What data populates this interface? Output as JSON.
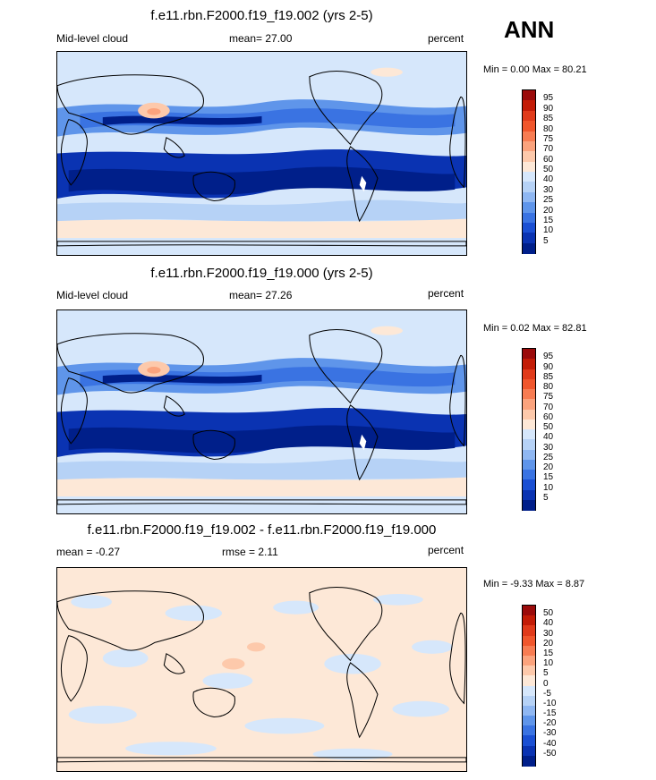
{
  "season": "ANN",
  "panels": [
    {
      "id": "top",
      "title": "f.e11.rbn.F2000.f19_f19.002 (yrs 2-5)",
      "left_label": "Mid-level cloud",
      "center_label": "mean=  27.00",
      "right_label": "percent",
      "minmax": "Min =   0.00 Max =  80.21",
      "ticks": [
        "95",
        "90",
        "85",
        "80",
        "75",
        "70",
        "60",
        "50",
        "40",
        "30",
        "25",
        "20",
        "15",
        "10",
        "5"
      ],
      "colors": [
        "#9b0b0b",
        "#c31c07",
        "#e03a1a",
        "#f0562c",
        "#f77c52",
        "#fba37d",
        "#fdc9ab",
        "#fde8d7",
        "#d6e7fb",
        "#b6d2f6",
        "#8fb7f2",
        "#5f95ea",
        "#3a73e2",
        "#1a4fd3",
        "#0a33b2",
        "#001f8a"
      ],
      "field": "mean"
    },
    {
      "id": "middle",
      "title": "f.e11.rbn.F2000.f19_f19.000 (yrs 2-5)",
      "left_label": "Mid-level cloud",
      "center_label": "mean=  27.26",
      "right_label": "percent",
      "minmax": "Min =   0.02 Max =  82.81",
      "ticks": [
        "95",
        "90",
        "85",
        "80",
        "75",
        "70",
        "60",
        "50",
        "40",
        "30",
        "25",
        "20",
        "15",
        "10",
        "5"
      ],
      "colors": [
        "#9b0b0b",
        "#c31c07",
        "#e03a1a",
        "#f0562c",
        "#f77c52",
        "#fba37d",
        "#fdc9ab",
        "#fde8d7",
        "#d6e7fb",
        "#b6d2f6",
        "#8fb7f2",
        "#5f95ea",
        "#3a73e2",
        "#1a4fd3",
        "#0a33b2",
        "#001f8a"
      ],
      "field": "mean"
    },
    {
      "id": "bottom",
      "title": "f.e11.rbn.F2000.f19_f19.002 - f.e11.rbn.F2000.f19_f19.000",
      "left_label": "mean =  -0.27",
      "center_label": "rmse =   2.11",
      "right_label": "percent",
      "minmax": "Min =  -9.33 Max =   8.87",
      "ticks": [
        "50",
        "40",
        "30",
        "20",
        "15",
        "10",
        "5",
        "0",
        "-5",
        "-10",
        "-15",
        "-20",
        "-30",
        "-40",
        "-50"
      ],
      "colors": [
        "#9b0b0b",
        "#c31c07",
        "#e03a1a",
        "#f0562c",
        "#f77c52",
        "#fba37d",
        "#fdc9ab",
        "#fde8d7",
        "#d6e7fb",
        "#b6d2f6",
        "#8fb7f2",
        "#5f95ea",
        "#3a73e2",
        "#1a4fd3",
        "#0a33b2",
        "#001f8a"
      ],
      "field": "diff"
    }
  ],
  "chart_data": [
    {
      "type": "heatmap",
      "title": "f.e11.rbn.F2000.f19_f19.002 (yrs 2-5)",
      "variable": "Mid-level cloud",
      "units": "percent",
      "mean": 27.0,
      "min": 0.0,
      "max": 80.21,
      "contour_levels": [
        5,
        10,
        15,
        20,
        25,
        30,
        40,
        50,
        60,
        70,
        75,
        80,
        85,
        90,
        95
      ]
    },
    {
      "type": "heatmap",
      "title": "f.e11.rbn.F2000.f19_f19.000 (yrs 2-5)",
      "variable": "Mid-level cloud",
      "units": "percent",
      "mean": 27.26,
      "min": 0.02,
      "max": 82.81,
      "contour_levels": [
        5,
        10,
        15,
        20,
        25,
        30,
        40,
        50,
        60,
        70,
        75,
        80,
        85,
        90,
        95
      ]
    },
    {
      "type": "heatmap",
      "title": "f.e11.rbn.F2000.f19_f19.002 - f.e11.rbn.F2000.f19_f19.000",
      "units": "percent",
      "mean": -0.27,
      "rmse": 2.11,
      "min": -9.33,
      "max": 8.87,
      "contour_levels": [
        -50,
        -40,
        -30,
        -20,
        -15,
        -10,
        -5,
        0,
        5,
        10,
        15,
        20,
        30,
        40,
        50
      ]
    }
  ]
}
